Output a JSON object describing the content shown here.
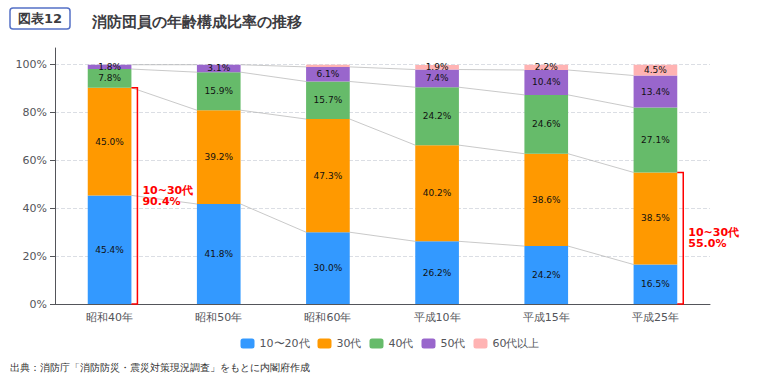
{
  "chart_data": {
    "type": "bar",
    "stacked": true,
    "figure_number": "図表12",
    "title": "消防団員の年齢構成比率の推移",
    "source": "出典：消防庁「消防防災・震災対策現況調査」をもとに内閣府作成",
    "categories": [
      "昭和40年",
      "昭和50年",
      "昭和60年",
      "平成10年",
      "平成15年",
      "平成25年"
    ],
    "series": [
      {
        "name": "10〜20代",
        "color": "#3399ff",
        "values": [
          45.4,
          41.8,
          30.0,
          26.2,
          24.2,
          16.5
        ],
        "value_labels": [
          "45.4%",
          "41.8%",
          "30.0%",
          "26.2%",
          "24.2%",
          "16.5%"
        ]
      },
      {
        "name": "30代",
        "color": "#ff9900",
        "values": [
          45.0,
          39.2,
          47.3,
          40.2,
          38.6,
          38.5
        ],
        "value_labels": [
          "45.0%",
          "39.2%",
          "47.3%",
          "40.2%",
          "38.6%",
          "38.5%"
        ]
      },
      {
        "name": "40代",
        "color": "#66bb6a",
        "values": [
          7.8,
          15.9,
          15.7,
          24.2,
          24.6,
          27.1
        ],
        "value_labels": [
          "7.8%",
          "15.9%",
          "15.7%",
          "24.2%",
          "24.6%",
          "27.1%"
        ]
      },
      {
        "name": "50代",
        "color": "#9966cc",
        "values": [
          1.8,
          3.1,
          6.1,
          7.4,
          10.4,
          13.4
        ],
        "value_labels": [
          "1.8%",
          "3.1%",
          "6.1%",
          "7.4%",
          "10.4%",
          "13.4%"
        ]
      },
      {
        "name": "60代以上",
        "color": "#ffb3b3",
        "values": [
          0.0,
          0.0,
          0.9,
          1.9,
          2.2,
          4.5
        ],
        "value_labels": [
          null,
          null,
          null,
          "1.9%",
          "2.2%",
          "4.5%"
        ]
      }
    ],
    "data_labels": true,
    "ylim": [
      0,
      107
    ],
    "yticks": [
      {
        "value": 0,
        "label": "0%"
      },
      {
        "value": 20,
        "label": "20%"
      },
      {
        "value": 40,
        "label": "40%"
      },
      {
        "value": 60,
        "label": "60%"
      },
      {
        "value": 80,
        "label": "80%"
      },
      {
        "value": 100,
        "label": "100%"
      }
    ],
    "grid": true,
    "legend": "bottom",
    "annotations": [
      {
        "text": "10~30代\n90.4%",
        "category": "昭和40年",
        "from": 0,
        "to": 90.4,
        "color": "red"
      },
      {
        "text": "10~30代\n55.0%",
        "category": "平成25年",
        "from": 0,
        "to": 55.0,
        "color": "red"
      }
    ]
  }
}
